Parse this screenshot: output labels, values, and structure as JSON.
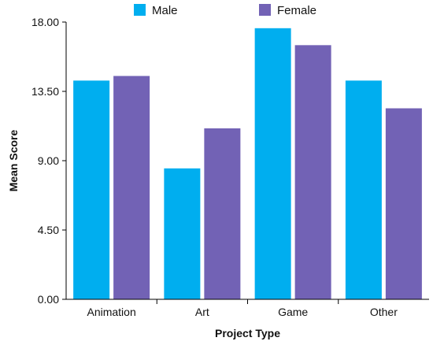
{
  "chart_data": {
    "type": "bar",
    "title": "",
    "xlabel": "Project Type",
    "ylabel": "Mean Score",
    "categories": [
      "Animation",
      "Art",
      "Game",
      "Other"
    ],
    "series": [
      {
        "name": "Male",
        "color": "#00AEEF",
        "values": [
          14.2,
          8.5,
          17.6,
          14.2
        ]
      },
      {
        "name": "Female",
        "color": "#7262B5",
        "values": [
          14.5,
          11.1,
          16.5,
          12.4
        ]
      }
    ],
    "ylim": [
      0,
      18
    ],
    "yticks": [
      "0.00",
      "4.50",
      "9.00",
      "13.50",
      "18.00"
    ],
    "legend_position": "top-center",
    "grid": false
  }
}
